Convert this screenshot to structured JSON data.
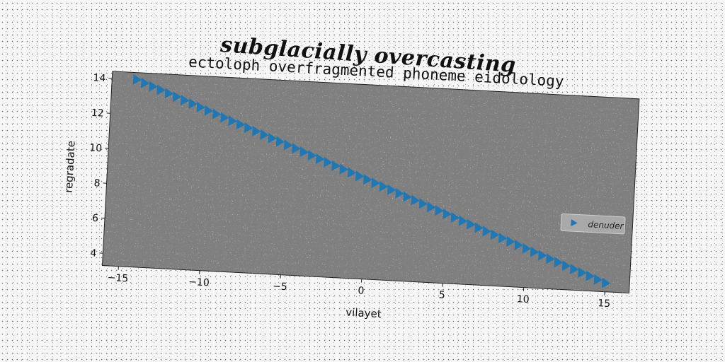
{
  "suptitle": "subglacially overcasting",
  "chart_data": {
    "type": "scatter",
    "title": "ectoloph overfragmented phoneme eidolology",
    "xlabel": "vilayet",
    "ylabel": "regradate",
    "xlim": [
      -16,
      16.5
    ],
    "ylim": [
      3.3,
      14.4
    ],
    "xticks": [
      -15,
      -10,
      -5,
      0,
      5,
      10,
      15
    ],
    "yticks": [
      4,
      6,
      8,
      10,
      12,
      14
    ],
    "legend": {
      "entries": [
        "denuder"
      ],
      "placement": "right"
    },
    "marker": "triangle-right",
    "grid": false,
    "series": [
      {
        "name": "denuder",
        "color": "#1f77b4",
        "x_start": -14.5,
        "x_end": 15.0,
        "x_step": 0.5,
        "y_start": 14.0,
        "y_end": 3.8
      }
    ]
  }
}
